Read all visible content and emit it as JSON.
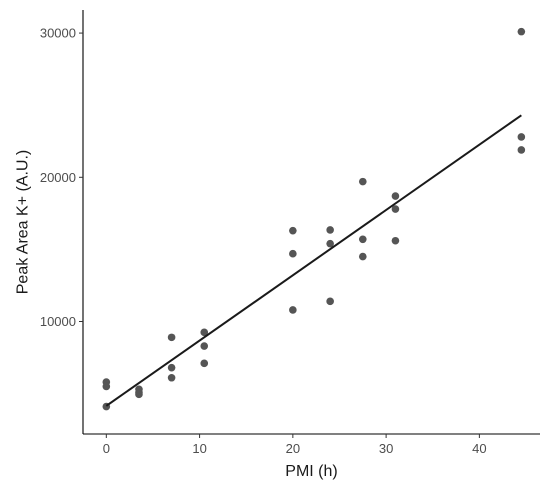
{
  "chart_data": {
    "type": "scatter",
    "title": "",
    "xlabel": "PMI (h)",
    "ylabel": "Peak Area K+ (A.U.)",
    "xlim": [
      -2.5,
      46.5
    ],
    "ylim": [
      2200,
      31600
    ],
    "x_ticks": [
      0,
      10,
      20,
      30,
      40
    ],
    "y_ticks": [
      10000,
      20000,
      30000
    ],
    "grid": false,
    "points": [
      {
        "x": 0,
        "y": 5800
      },
      {
        "x": 0,
        "y": 5500
      },
      {
        "x": 0,
        "y": 4100
      },
      {
        "x": 3.5,
        "y": 5300
      },
      {
        "x": 3.5,
        "y": 5100
      },
      {
        "x": 3.5,
        "y": 4950
      },
      {
        "x": 7,
        "y": 8900
      },
      {
        "x": 7,
        "y": 6800
      },
      {
        "x": 7,
        "y": 6100
      },
      {
        "x": 10.5,
        "y": 9250
      },
      {
        "x": 10.5,
        "y": 8300
      },
      {
        "x": 10.5,
        "y": 7100
      },
      {
        "x": 20,
        "y": 16300
      },
      {
        "x": 20,
        "y": 14700
      },
      {
        "x": 20,
        "y": 10800
      },
      {
        "x": 24,
        "y": 16350
      },
      {
        "x": 24,
        "y": 15400
      },
      {
        "x": 24,
        "y": 11400
      },
      {
        "x": 27.5,
        "y": 19700
      },
      {
        "x": 27.5,
        "y": 15700
      },
      {
        "x": 27.5,
        "y": 14500
      },
      {
        "x": 31,
        "y": 18700
      },
      {
        "x": 31,
        "y": 17800
      },
      {
        "x": 31,
        "y": 15600
      },
      {
        "x": 44.5,
        "y": 30100
      },
      {
        "x": 44.5,
        "y": 22800
      },
      {
        "x": 44.5,
        "y": 21900
      }
    ],
    "regression_line": {
      "x": [
        0,
        44.5
      ],
      "y": [
        4150,
        24300
      ]
    },
    "colors": {
      "points": "#555555",
      "line": "#1a1a1a",
      "axis": "#000000",
      "tick_label": "#4d4d4d"
    }
  }
}
